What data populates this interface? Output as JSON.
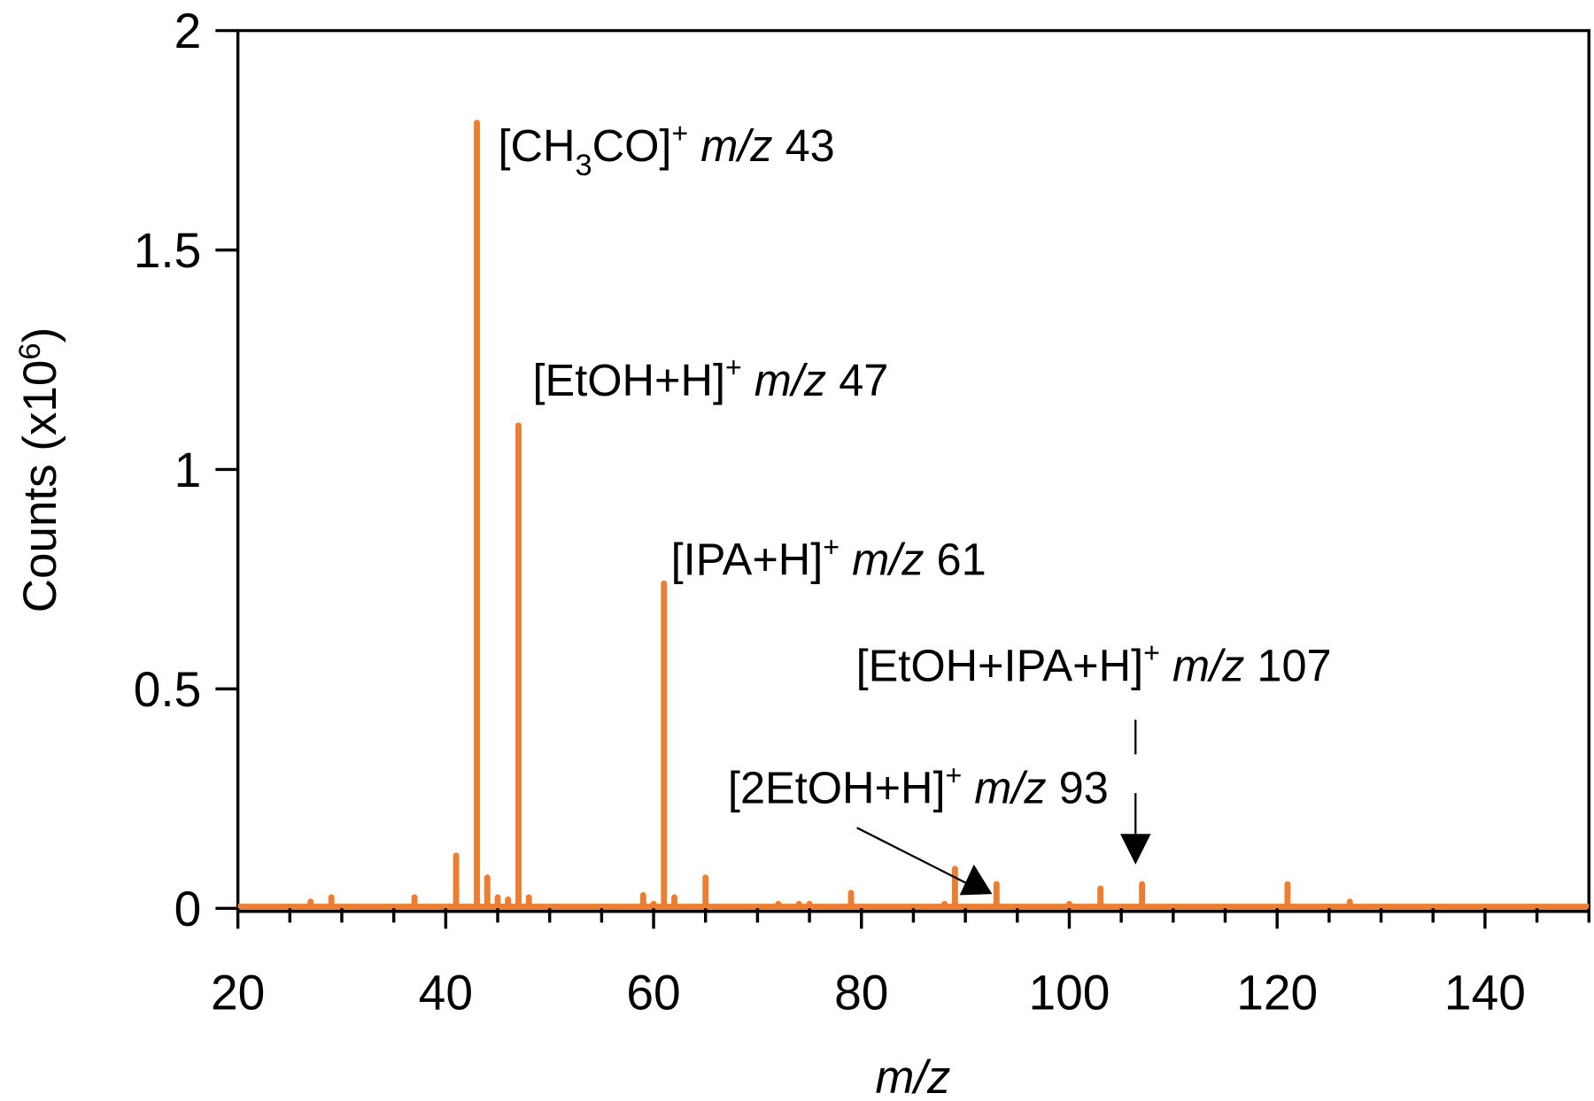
{
  "chart_data": {
    "type": "bar",
    "subtype": "mass-spectrum-stick",
    "title": "",
    "xlabel": "m/z",
    "ylabel": "Counts (x10^6)",
    "ylabel_parts": {
      "main": "Counts (x10",
      "sup": "6",
      "close": ")"
    },
    "xlim": [
      20,
      150
    ],
    "ylim": [
      0,
      2
    ],
    "xticks": [
      20,
      40,
      60,
      80,
      100,
      120,
      140
    ],
    "xtick_labels": [
      "20",
      "40",
      "60",
      "80",
      "100",
      "120",
      "140"
    ],
    "x_minor_step": 5,
    "yticks": [
      0,
      0.5,
      1,
      1.5,
      2
    ],
    "ytick_labels": [
      "0",
      "0.5",
      "1",
      "1.5",
      "2"
    ],
    "grid": false,
    "legend": null,
    "series_color": "#ED7D31",
    "series": [
      {
        "name": "spectrum",
        "x": [
          27,
          29,
          37,
          41,
          43,
          44,
          45,
          46,
          47,
          48,
          59,
          60,
          61,
          62,
          65,
          72,
          74,
          75,
          79,
          88,
          89,
          93,
          100,
          103,
          107,
          121,
          127
        ],
        "values": [
          0.015,
          0.025,
          0.025,
          0.12,
          1.79,
          0.07,
          0.025,
          0.02,
          1.1,
          0.025,
          0.03,
          0.01,
          0.74,
          0.025,
          0.07,
          0.01,
          0.01,
          0.01,
          0.035,
          0.01,
          0.09,
          0.055,
          0.01,
          0.045,
          0.055,
          0.055,
          0.015
        ]
      }
    ],
    "annotations": [
      {
        "id": "a43",
        "text_pre": "[CH",
        "sub": "3",
        "text_mid": "CO]",
        "sup": "+",
        "mz_label": "m/z",
        "mz_value": "43",
        "peak_x": 43
      },
      {
        "id": "a47",
        "text_pre": "[EtOH+H]",
        "sup": "+",
        "mz_label": "m/z",
        "mz_value": "47",
        "peak_x": 47
      },
      {
        "id": "a61",
        "text_pre": "[IPA+H]",
        "sup": "+",
        "mz_label": "m/z",
        "mz_value": "61",
        "peak_x": 61
      },
      {
        "id": "a107",
        "text_pre": "[EtOH+IPA+H]",
        "sup": "+",
        "mz_label": "m/z",
        "mz_value": "107",
        "peak_x": 107,
        "arrow": "dashed-down"
      },
      {
        "id": "a93",
        "text_pre": "[2EtOH+H]",
        "sup": "+",
        "mz_label": "m/z",
        "mz_value": "93",
        "peak_x": 93,
        "arrow": "diagonal"
      }
    ]
  }
}
